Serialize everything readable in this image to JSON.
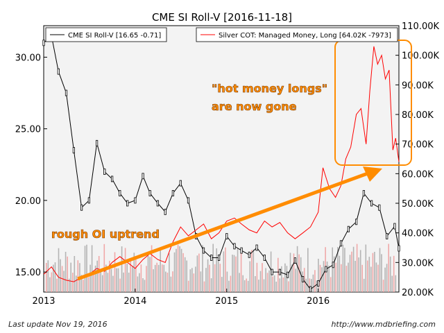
{
  "chart_data": {
    "type": "line",
    "title": "CME SI Roll-V  [2016-11-18]",
    "x_ticks": [
      "2013",
      "2014",
      "2015",
      "2016"
    ],
    "left_axis": {
      "ticks": [
        "15.00",
        "20.00",
        "25.00",
        "30.00"
      ],
      "range": [
        13.6,
        32.2
      ]
    },
    "right_axis": {
      "ticks": [
        "20.00K",
        "30.00K",
        "40.00K",
        "50.00K",
        "60.00K",
        "70.00K",
        "80.00K",
        "90.00K",
        "100.00K",
        "110.00K"
      ],
      "range": [
        20000,
        110000
      ]
    },
    "x_range": [
      "2013-01-01",
      "2016-11-18"
    ],
    "grid": false,
    "legend": [
      {
        "label": "CME SI Roll-V [16.65 -0.71]",
        "color": "#000000",
        "position": "top-left"
      },
      {
        "label": "Silver COT: Managed Money, Long [64.02K -7973]",
        "color": "#ff0000",
        "position": "top-right"
      }
    ],
    "price_series": {
      "name": "CME SI Roll-V",
      "axis": "left",
      "x": [
        "2013-01-01",
        "2013-02-01",
        "2013-03-01",
        "2013-04-01",
        "2013-05-01",
        "2013-06-01",
        "2013-07-01",
        "2013-08-01",
        "2013-09-01",
        "2013-10-01",
        "2013-11-01",
        "2013-12-01",
        "2014-01-01",
        "2014-02-01",
        "2014-03-01",
        "2014-04-01",
        "2014-05-01",
        "2014-06-01",
        "2014-07-01",
        "2014-08-01",
        "2014-09-01",
        "2014-10-01",
        "2014-11-01",
        "2014-12-01",
        "2015-01-01",
        "2015-02-01",
        "2015-03-01",
        "2015-04-01",
        "2015-05-01",
        "2015-06-01",
        "2015-07-01",
        "2015-08-01",
        "2015-09-01",
        "2015-10-01",
        "2015-11-01",
        "2015-12-01",
        "2016-01-01",
        "2016-02-01",
        "2016-03-01",
        "2016-04-01",
        "2016-05-01",
        "2016-06-01",
        "2016-07-01",
        "2016-08-01",
        "2016-09-01",
        "2016-10-01",
        "2016-11-01",
        "2016-11-18"
      ],
      "values": [
        31.0,
        31.5,
        29.0,
        27.5,
        23.5,
        19.5,
        20.0,
        24.0,
        22.0,
        21.5,
        20.5,
        19.8,
        20.0,
        21.7,
        20.5,
        19.8,
        19.2,
        20.5,
        21.2,
        20.0,
        17.5,
        16.5,
        16.0,
        16.0,
        17.5,
        16.8,
        16.5,
        16.2,
        16.7,
        16.0,
        15.0,
        15.0,
        14.8,
        15.8,
        14.5,
        13.8,
        14.2,
        15.2,
        15.5,
        17.0,
        18.0,
        18.5,
        20.5,
        19.8,
        19.5,
        17.5,
        18.2,
        16.65
      ]
    },
    "cot_series": {
      "name": "Silver COT: Managed Money, Long",
      "axis": "right",
      "x": [
        "2013-01-01",
        "2013-02-01",
        "2013-03-01",
        "2013-04-01",
        "2013-05-01",
        "2013-06-01",
        "2013-07-01",
        "2013-08-01",
        "2013-09-01",
        "2013-10-01",
        "2013-11-01",
        "2013-12-01",
        "2014-01-01",
        "2014-02-01",
        "2014-03-01",
        "2014-04-01",
        "2014-05-01",
        "2014-06-01",
        "2014-07-01",
        "2014-08-01",
        "2014-09-01",
        "2014-10-01",
        "2014-11-01",
        "2014-12-01",
        "2015-01-01",
        "2015-02-01",
        "2015-03-01",
        "2015-04-01",
        "2015-05-01",
        "2015-06-01",
        "2015-07-01",
        "2015-08-01",
        "2015-09-01",
        "2015-10-01",
        "2015-11-01",
        "2015-12-01",
        "2016-01-01",
        "2016-01-20",
        "2016-02-15",
        "2016-03-10",
        "2016-04-01",
        "2016-04-20",
        "2016-05-10",
        "2016-06-01",
        "2016-06-20",
        "2016-07-10",
        "2016-07-25",
        "2016-08-10",
        "2016-08-25",
        "2016-09-10",
        "2016-09-25",
        "2016-10-10",
        "2016-10-25",
        "2016-11-05",
        "2016-11-18"
      ],
      "values": [
        26000,
        28500,
        25000,
        24000,
        23500,
        25000,
        26000,
        28000,
        27000,
        30000,
        32000,
        30000,
        28000,
        31000,
        33000,
        31000,
        30000,
        37000,
        42000,
        39000,
        41000,
        43000,
        38000,
        40000,
        44000,
        45000,
        43000,
        41000,
        40000,
        44000,
        42000,
        43500,
        40000,
        38000,
        40000,
        42000,
        47000,
        62000,
        55000,
        52000,
        56000,
        65000,
        69000,
        80000,
        82000,
        70000,
        88000,
        103000,
        97000,
        100000,
        92000,
        95000,
        68000,
        72000,
        64020
      ]
    },
    "annotations": [
      "\"hot money longs\"",
      "are now gone",
      "rough OI uptrend"
    ]
  },
  "footer": {
    "left": "Last update Nov 19, 2016",
    "right": "http://www.mdbriefing.com"
  },
  "colors": {
    "annotation": "#ff8c00",
    "price_line": "#000000",
    "cot_line": "#ff0000",
    "volume_bar": "#b4b4b4",
    "volume_bar_alt": "#f0a8a8",
    "plot_bg": "#f3f3f3"
  }
}
